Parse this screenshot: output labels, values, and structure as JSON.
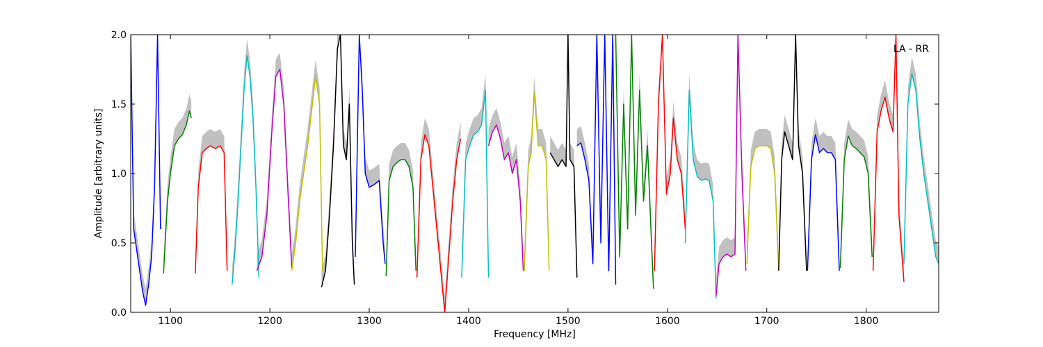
{
  "chart_data": {
    "type": "line",
    "xlabel": "Frequency [MHz]",
    "ylabel": "Amplitude [arbitrary units]",
    "annotation": "LA - RR",
    "annotation_position": "top-right",
    "xlim": [
      1060,
      1873
    ],
    "ylim": [
      0.0,
      2.0
    ],
    "xticks": [
      1100,
      1200,
      1300,
      1400,
      1500,
      1600,
      1700,
      1800
    ],
    "xtick_labels": [
      "1100",
      "1200",
      "1300",
      "1400",
      "1500",
      "1600",
      "1700",
      "1800"
    ],
    "yticks": [
      0.0,
      0.5,
      1.0,
      1.5,
      2.0
    ],
    "ytick_labels": [
      "0.0",
      "0.5",
      "1.0",
      "1.5",
      "2.0"
    ],
    "grid": false,
    "background_color": "#c0c0c0",
    "segments": [
      {
        "color": "#0000ff",
        "x": [
          1060,
          1063,
          1066,
          1069,
          1072,
          1075,
          1078,
          1081,
          1084,
          1087,
          1090
        ],
        "y": [
          2.0,
          0.6,
          0.45,
          0.3,
          0.15,
          0.05,
          0.2,
          0.4,
          0.9,
          2.0,
          0.6
        ]
      },
      {
        "color": "#008000",
        "x": [
          1093,
          1097,
          1100,
          1104,
          1108,
          1112,
          1116,
          1119,
          1121
        ],
        "y": [
          0.28,
          0.8,
          1.0,
          1.2,
          1.25,
          1.28,
          1.35,
          1.45,
          1.4
        ]
      },
      {
        "color": "#ff0000",
        "x": [
          1125,
          1128,
          1132,
          1136,
          1140,
          1145,
          1150,
          1154,
          1157
        ],
        "y": [
          0.28,
          0.9,
          1.15,
          1.18,
          1.2,
          1.18,
          1.2,
          1.15,
          0.3
        ]
      },
      {
        "color": "#00bfbf",
        "x": [
          1162,
          1165,
          1168,
          1171,
          1174,
          1177,
          1180,
          1183,
          1186,
          1189
        ],
        "y": [
          0.2,
          0.45,
          0.8,
          1.2,
          1.6,
          1.85,
          1.7,
          1.4,
          0.9,
          0.25
        ]
      },
      {
        "color": "#bf00bf",
        "x": [
          1187,
          1192,
          1197,
          1202,
          1206,
          1210,
          1214,
          1218,
          1222
        ],
        "y": [
          0.3,
          0.4,
          0.7,
          1.3,
          1.7,
          1.75,
          1.5,
          0.9,
          0.32
        ]
      },
      {
        "color": "#bfbf00",
        "x": [
          1222,
          1226,
          1230,
          1234,
          1238,
          1242,
          1246,
          1250,
          1253
        ],
        "y": [
          0.3,
          0.5,
          0.8,
          1.0,
          1.2,
          1.45,
          1.7,
          1.5,
          0.3
        ]
      },
      {
        "color": "#000000",
        "x": [
          1252,
          1256,
          1260,
          1264,
          1268,
          1271,
          1274,
          1277,
          1280,
          1283,
          1285
        ],
        "y": [
          0.18,
          0.3,
          0.7,
          1.2,
          1.9,
          2.0,
          1.2,
          1.1,
          1.5,
          0.5,
          0.2
        ]
      },
      {
        "color": "#0000ff",
        "x": [
          1286,
          1290,
          1293,
          1296,
          1300,
          1305,
          1310,
          1314,
          1316
        ],
        "y": [
          0.4,
          2.0,
          1.6,
          1.0,
          0.9,
          0.92,
          0.95,
          0.5,
          0.35
        ]
      },
      {
        "color": "#008000",
        "x": [
          1317,
          1320,
          1324,
          1328,
          1332,
          1336,
          1340,
          1344,
          1347
        ],
        "y": [
          0.26,
          0.95,
          1.05,
          1.08,
          1.1,
          1.1,
          1.05,
          0.9,
          0.3
        ]
      },
      {
        "color": "#ff0000",
        "x": [
          1348,
          1352,
          1356,
          1360,
          1364,
          1368,
          1372,
          1376,
          1380,
          1384,
          1388,
          1392
        ],
        "y": [
          0.25,
          1.1,
          1.28,
          1.2,
          0.9,
          0.6,
          0.3,
          0.0,
          0.4,
          0.8,
          1.1,
          1.25
        ]
      },
      {
        "color": "#00bfbf",
        "x": [
          1393,
          1397,
          1401,
          1405,
          1409,
          1413,
          1417,
          1420
        ],
        "y": [
          0.25,
          1.1,
          1.2,
          1.28,
          1.3,
          1.35,
          1.6,
          0.25
        ]
      },
      {
        "color": "#bf00bf",
        "x": [
          1420,
          1424,
          1428,
          1432,
          1436,
          1440,
          1444,
          1448,
          1452,
          1455
        ],
        "y": [
          1.2,
          1.3,
          1.35,
          1.25,
          1.1,
          1.15,
          1.0,
          1.1,
          0.8,
          0.3
        ]
      },
      {
        "color": "#bfbf00",
        "x": [
          1456,
          1460,
          1463,
          1466,
          1470,
          1474,
          1478,
          1481
        ],
        "y": [
          0.3,
          1.05,
          1.15,
          1.58,
          1.2,
          1.2,
          1.1,
          0.3
        ]
      },
      {
        "color": "#000000",
        "x": [
          1482,
          1486,
          1490,
          1494,
          1498,
          1500,
          1502,
          1506,
          1509
        ],
        "y": [
          1.15,
          1.1,
          1.05,
          1.1,
          1.05,
          2.0,
          1.1,
          1.05,
          0.25
        ]
      },
      {
        "color": "#0000ff",
        "x": [
          1509,
          1513,
          1517,
          1521,
          1525,
          1529,
          1533,
          1537,
          1541,
          1545,
          1548
        ],
        "y": [
          1.2,
          1.22,
          1.1,
          0.95,
          0.35,
          2.0,
          0.5,
          2.0,
          0.3,
          2.0,
          0.2
        ]
      },
      {
        "color": "#008000",
        "x": [
          1548,
          1552,
          1556,
          1560,
          1564,
          1568,
          1572,
          1576,
          1580,
          1584,
          1586
        ],
        "y": [
          2.0,
          0.4,
          1.5,
          0.6,
          2.0,
          0.7,
          1.6,
          0.8,
          1.2,
          0.5,
          0.17
        ]
      },
      {
        "color": "#ff0000",
        "x": [
          1587,
          1591,
          1595,
          1599,
          1603,
          1606,
          1610,
          1614,
          1618
        ],
        "y": [
          0.3,
          1.5,
          2.0,
          0.85,
          1.0,
          1.4,
          1.1,
          1.0,
          0.6
        ]
      },
      {
        "color": "#00bfbf",
        "x": [
          1618,
          1622,
          1626,
          1630,
          1634,
          1638,
          1642,
          1646,
          1649
        ],
        "y": [
          0.5,
          1.6,
          1.1,
          0.98,
          0.95,
          0.96,
          0.95,
          0.8,
          0.1
        ]
      },
      {
        "color": "#bf00bf",
        "x": [
          1649,
          1652,
          1656,
          1660,
          1664,
          1668,
          1671,
          1675,
          1679
        ],
        "y": [
          0.12,
          0.35,
          0.4,
          0.42,
          0.4,
          0.42,
          2.0,
          1.0,
          0.3
        ]
      },
      {
        "color": "#bfbf00",
        "x": [
          1680,
          1684,
          1688,
          1692,
          1696,
          1700,
          1704,
          1708,
          1712
        ],
        "y": [
          0.35,
          1.05,
          1.18,
          1.2,
          1.2,
          1.2,
          1.18,
          1.0,
          0.3
        ]
      },
      {
        "color": "#000000",
        "x": [
          1712,
          1715,
          1718,
          1722,
          1726,
          1729,
          1732,
          1736,
          1740
        ],
        "y": [
          0.3,
          1.1,
          1.3,
          1.2,
          1.1,
          2.0,
          1.2,
          1.0,
          0.3
        ]
      },
      {
        "color": "#0000ff",
        "x": [
          1741,
          1745,
          1749,
          1753,
          1757,
          1761,
          1765,
          1769,
          1773
        ],
        "y": [
          0.3,
          1.1,
          1.28,
          1.15,
          1.18,
          1.15,
          1.15,
          1.1,
          0.3
        ]
      },
      {
        "color": "#008000",
        "x": [
          1774,
          1778,
          1782,
          1786,
          1790,
          1794,
          1798,
          1802,
          1806
        ],
        "y": [
          0.32,
          1.1,
          1.27,
          1.2,
          1.18,
          1.15,
          1.12,
          1.0,
          0.4
        ]
      },
      {
        "color": "#ff0000",
        "x": [
          1807,
          1811,
          1815,
          1819,
          1823,
          1827,
          1830,
          1833,
          1838
        ],
        "y": [
          0.3,
          1.3,
          1.45,
          1.55,
          1.4,
          1.3,
          2.0,
          0.7,
          0.22
        ]
      },
      {
        "color": "#00bfbf",
        "x": [
          1838,
          1842,
          1846,
          1850,
          1854,
          1858,
          1862,
          1866,
          1870,
          1873
        ],
        "y": [
          0.35,
          1.5,
          1.72,
          1.6,
          1.25,
          1.0,
          0.8,
          0.6,
          0.4,
          0.35
        ]
      }
    ]
  }
}
